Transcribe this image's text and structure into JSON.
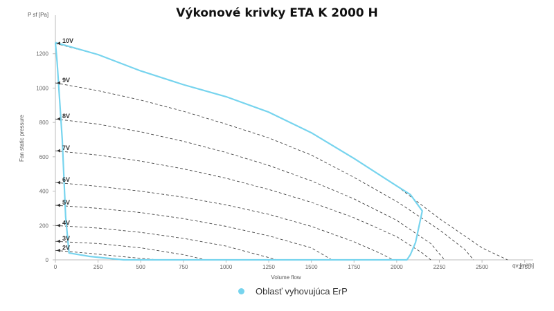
{
  "chart_data": {
    "type": "line",
    "title": "Výkonové krivky ETA K 2000 H",
    "xlabel": "Volume flow",
    "ylabel": "Fan static pressure",
    "x_unit_label": "qv [m³/h]",
    "y_unit_label": "P sf [Pa]",
    "xlim": [
      0,
      2800
    ],
    "ylim": [
      0,
      1400
    ],
    "x_ticks": [
      0,
      250,
      500,
      750,
      1000,
      1250,
      1500,
      1750,
      2000,
      2250,
      2500,
      2750
    ],
    "y_ticks": [
      0,
      200,
      400,
      600,
      800,
      1000,
      1200
    ],
    "grid": false,
    "legend_position": "bottom",
    "series": [
      {
        "label": "10V",
        "style": "dashed",
        "points": [
          [
            0,
            1260
          ],
          [
            250,
            1195
          ],
          [
            500,
            1100
          ],
          [
            750,
            1020
          ],
          [
            1000,
            950
          ],
          [
            1250,
            860
          ],
          [
            1500,
            740
          ],
          [
            1750,
            590
          ],
          [
            2000,
            430
          ],
          [
            2250,
            240
          ],
          [
            2500,
            70
          ],
          [
            2650,
            0
          ]
        ]
      },
      {
        "label": "9V",
        "style": "dashed",
        "points": [
          [
            0,
            1030
          ],
          [
            250,
            985
          ],
          [
            500,
            930
          ],
          [
            750,
            865
          ],
          [
            1000,
            790
          ],
          [
            1250,
            710
          ],
          [
            1500,
            610
          ],
          [
            1750,
            480
          ],
          [
            2000,
            340
          ],
          [
            2250,
            175
          ],
          [
            2400,
            60
          ],
          [
            2450,
            0
          ]
        ]
      },
      {
        "label": "8V",
        "style": "dashed",
        "points": [
          [
            0,
            820
          ],
          [
            250,
            790
          ],
          [
            500,
            745
          ],
          [
            750,
            690
          ],
          [
            1000,
            625
          ],
          [
            1250,
            550
          ],
          [
            1500,
            460
          ],
          [
            1750,
            355
          ],
          [
            2000,
            230
          ],
          [
            2200,
            95
          ],
          [
            2280,
            0
          ]
        ]
      },
      {
        "label": "7V",
        "style": "dashed",
        "points": [
          [
            0,
            635
          ],
          [
            250,
            610
          ],
          [
            500,
            575
          ],
          [
            750,
            530
          ],
          [
            1000,
            475
          ],
          [
            1250,
            410
          ],
          [
            1500,
            335
          ],
          [
            1750,
            245
          ],
          [
            2000,
            135
          ],
          [
            2150,
            40
          ],
          [
            2200,
            0
          ]
        ]
      },
      {
        "label": "6V",
        "style": "dashed",
        "points": [
          [
            0,
            450
          ],
          [
            250,
            428
          ],
          [
            500,
            400
          ],
          [
            750,
            365
          ],
          [
            1000,
            320
          ],
          [
            1250,
            265
          ],
          [
            1500,
            195
          ],
          [
            1750,
            105
          ],
          [
            1900,
            40
          ],
          [
            1980,
            0
          ]
        ]
      },
      {
        "label": "5V",
        "style": "dashed",
        "points": [
          [
            0,
            318
          ],
          [
            250,
            300
          ],
          [
            500,
            275
          ],
          [
            750,
            240
          ],
          [
            1000,
            195
          ],
          [
            1250,
            140
          ],
          [
            1500,
            70
          ],
          [
            1620,
            0
          ]
        ]
      },
      {
        "label": "4V",
        "style": "dashed",
        "points": [
          [
            0,
            200
          ],
          [
            250,
            185
          ],
          [
            500,
            160
          ],
          [
            750,
            125
          ],
          [
            1000,
            80
          ],
          [
            1150,
            40
          ],
          [
            1300,
            0
          ]
        ]
      },
      {
        "label": "3V",
        "style": "dashed",
        "points": [
          [
            0,
            108
          ],
          [
            250,
            95
          ],
          [
            500,
            70
          ],
          [
            750,
            30
          ],
          [
            880,
            0
          ]
        ]
      },
      {
        "label": "2V",
        "style": "dashed",
        "points": [
          [
            0,
            55
          ],
          [
            200,
            38
          ],
          [
            400,
            18
          ],
          [
            600,
            0
          ]
        ]
      }
    ],
    "erp_region": {
      "label": "Oblasť vyhovujúca ErP",
      "color": "#77d4ee",
      "points": [
        [
          0,
          1265
        ],
        [
          250,
          1195
        ],
        [
          500,
          1100
        ],
        [
          750,
          1020
        ],
        [
          1000,
          950
        ],
        [
          1250,
          860
        ],
        [
          1500,
          740
        ],
        [
          1750,
          590
        ],
        [
          2000,
          430
        ],
        [
          2080,
          380
        ],
        [
          2150,
          285
        ],
        [
          2110,
          100
        ],
        [
          2080,
          30
        ],
        [
          2060,
          0
        ],
        [
          400,
          0
        ],
        [
          200,
          20
        ],
        [
          80,
          40
        ],
        [
          60,
          250
        ],
        [
          40,
          700
        ],
        [
          10,
          1150
        ],
        [
          0,
          1265
        ]
      ]
    }
  }
}
